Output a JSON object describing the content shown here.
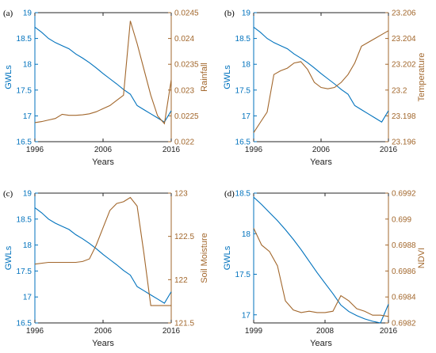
{
  "colors": {
    "left_series": "#0072BD",
    "right_series": "#A2672C",
    "axis": "#262626"
  },
  "chart_data": [
    {
      "type": "line",
      "panel_label": "(a)",
      "xlabel": "Years",
      "ylabel_left": "GWLs",
      "ylabel_right": "Rainfall",
      "xlim": [
        1996,
        2016
      ],
      "xticks": [
        1996,
        2006,
        2016
      ],
      "xtick_labels": [
        "1996",
        "2006",
        "2016"
      ],
      "ylim_left": [
        16.5,
        19
      ],
      "yticks_left": [
        16.5,
        17,
        17.5,
        18,
        18.5,
        19
      ],
      "ytick_labels_left": [
        "16.5",
        "17",
        "17.5",
        "18",
        "18.5",
        "19"
      ],
      "ylim_right": [
        0.022,
        0.0245
      ],
      "yticks_right": [
        0.022,
        0.0225,
        0.023,
        0.0235,
        0.024,
        0.0245
      ],
      "ytick_labels_right": [
        "0.022",
        "0.0225",
        "0.023",
        "0.0235",
        "0.024",
        "0.0245"
      ],
      "grid": false,
      "series": [
        {
          "axis": "left",
          "x": [
            1996,
            1997,
            1998,
            1999,
            2000,
            2001,
            2002,
            2003,
            2004,
            2005,
            2006,
            2007,
            2008,
            2009,
            2010,
            2011,
            2012,
            2013,
            2014,
            2015,
            2016
          ],
          "values": [
            18.72,
            18.62,
            18.5,
            18.42,
            18.36,
            18.3,
            18.2,
            18.12,
            18.03,
            17.93,
            17.82,
            17.72,
            17.62,
            17.51,
            17.42,
            17.2,
            17.12,
            17.04,
            16.96,
            16.88,
            17.1
          ]
        },
        {
          "axis": "right",
          "x": [
            1996,
            1997,
            1998,
            1999,
            2000,
            2001,
            2002,
            2003,
            2004,
            2005,
            2006,
            2007,
            2008,
            2009,
            2010,
            2011,
            2012,
            2013,
            2014,
            2015,
            2016
          ],
          "values": [
            0.02237,
            0.02239,
            0.02242,
            0.02245,
            0.02253,
            0.02251,
            0.02251,
            0.02252,
            0.02254,
            0.02258,
            0.02264,
            0.0227,
            0.0228,
            0.0229,
            0.02434,
            0.0239,
            0.0234,
            0.0229,
            0.0225,
            0.02235,
            0.0232
          ]
        }
      ]
    },
    {
      "type": "line",
      "panel_label": "(b)",
      "xlabel": "Years",
      "ylabel_left": "GWLs",
      "ylabel_right": "Temperature",
      "xlim": [
        1996,
        2016
      ],
      "xticks": [
        1996,
        2006,
        2016
      ],
      "xtick_labels": [
        "1996",
        "2006",
        "2016"
      ],
      "ylim_left": [
        16.5,
        19
      ],
      "yticks_left": [
        16.5,
        17,
        17.5,
        18,
        18.5,
        19
      ],
      "ytick_labels_left": [
        "16.5",
        "17",
        "17.5",
        "18",
        "18.5",
        "19"
      ],
      "ylim_right": [
        23.196,
        23.206
      ],
      "yticks_right": [
        23.196,
        23.198,
        23.2,
        23.202,
        23.204,
        23.206
      ],
      "ytick_labels_right": [
        "23.196",
        "23.198",
        "23.2",
        "23.202",
        "23.204",
        "23.206"
      ],
      "grid": false,
      "series": [
        {
          "axis": "left",
          "x": [
            1996,
            1997,
            1998,
            1999,
            2000,
            2001,
            2002,
            2003,
            2004,
            2005,
            2006,
            2007,
            2008,
            2009,
            2010,
            2011,
            2012,
            2013,
            2014,
            2015,
            2016
          ],
          "values": [
            18.72,
            18.62,
            18.5,
            18.42,
            18.36,
            18.3,
            18.2,
            18.12,
            18.03,
            17.93,
            17.82,
            17.72,
            17.62,
            17.51,
            17.42,
            17.2,
            17.12,
            17.04,
            16.96,
            16.88,
            17.1
          ]
        },
        {
          "axis": "right",
          "x": [
            1996,
            1997,
            1998,
            1999,
            2000,
            2001,
            2002,
            2003,
            2004,
            2005,
            2006,
            2007,
            2008,
            2009,
            2010,
            2011,
            2012,
            2013,
            2014,
            2015,
            2016
          ],
          "values": [
            23.1967,
            23.1975,
            23.1983,
            23.2012,
            23.2015,
            23.2017,
            23.2021,
            23.2022,
            23.2016,
            23.2006,
            23.2002,
            23.2001,
            23.2002,
            23.2006,
            23.2012,
            23.2021,
            23.2034,
            23.2037,
            23.204,
            23.2043,
            23.2046
          ]
        }
      ]
    },
    {
      "type": "line",
      "panel_label": "(c)",
      "xlabel": "Years",
      "ylabel_left": "GWLs",
      "ylabel_right": "Soil Moisture",
      "xlim": [
        1996,
        2016
      ],
      "xticks": [
        1996,
        2006,
        2016
      ],
      "xtick_labels": [
        "1996",
        "2006",
        "2016"
      ],
      "ylim_left": [
        16.5,
        19
      ],
      "yticks_left": [
        16.5,
        17,
        17.5,
        18,
        18.5,
        19
      ],
      "ytick_labels_left": [
        "16.5",
        "17",
        "17.5",
        "18",
        "18.5",
        "19"
      ],
      "ylim_right": [
        121.5,
        123
      ],
      "yticks_right": [
        121.5,
        122,
        122.5,
        123
      ],
      "ytick_labels_right": [
        "121.5",
        "122",
        "122.5",
        "123"
      ],
      "grid": false,
      "series": [
        {
          "axis": "left",
          "x": [
            1996,
            1997,
            1998,
            1999,
            2000,
            2001,
            2002,
            2003,
            2004,
            2005,
            2006,
            2007,
            2008,
            2009,
            2010,
            2011,
            2012,
            2013,
            2014,
            2015,
            2016
          ],
          "values": [
            18.72,
            18.62,
            18.5,
            18.42,
            18.36,
            18.3,
            18.2,
            18.12,
            18.03,
            17.93,
            17.82,
            17.72,
            17.62,
            17.51,
            17.42,
            17.2,
            17.12,
            17.04,
            16.96,
            16.88,
            17.1
          ]
        },
        {
          "axis": "right",
          "x": [
            1996,
            1998,
            2000,
            2002,
            2003,
            2004,
            2005,
            2006,
            2007,
            2008,
            2009,
            2010,
            2011,
            2012,
            2013,
            2014,
            2015,
            2016
          ],
          "values": [
            122.18,
            122.2,
            122.2,
            122.2,
            122.21,
            122.24,
            122.4,
            122.6,
            122.8,
            122.88,
            122.9,
            122.95,
            122.85,
            122.3,
            121.7,
            121.7,
            121.7,
            121.7
          ]
        }
      ]
    },
    {
      "type": "line",
      "panel_label": "(d)",
      "xlabel": "Years",
      "ylabel_left": "GWLs",
      "ylabel_right": "NDVI",
      "xlim": [
        1999,
        2016
      ],
      "xticks": [
        1999,
        2008,
        2016
      ],
      "xtick_labels": [
        "1999",
        "2008",
        "2016"
      ],
      "ylim_left": [
        16.9,
        18.5
      ],
      "yticks_left": [
        17,
        17.5,
        18,
        18.5
      ],
      "ytick_labels_left": [
        "17",
        "17.5",
        "18",
        "18.5"
      ],
      "ylim_right": [
        0.6982,
        0.6992
      ],
      "yticks_right": [
        0.6982,
        0.6984,
        0.6986,
        0.6988,
        0.699,
        0.6992
      ],
      "ytick_labels_right": [
        "0.6982",
        "0.6984",
        "0.6986",
        "0.6988",
        "0.699",
        "0.6992"
      ],
      "grid": false,
      "series": [
        {
          "axis": "left",
          "x": [
            1999,
            2000,
            2001,
            2002,
            2003,
            2004,
            2005,
            2006,
            2007,
            2008,
            2009,
            2010,
            2011,
            2012,
            2013,
            2014,
            2015,
            2016
          ],
          "values": [
            18.45,
            18.36,
            18.26,
            18.16,
            18.05,
            17.93,
            17.8,
            17.66,
            17.52,
            17.39,
            17.26,
            17.12,
            17.04,
            16.99,
            16.95,
            16.92,
            16.9,
            17.13
          ]
        },
        {
          "axis": "right",
          "x": [
            1999,
            2000,
            2001,
            2002,
            2003,
            2004,
            2005,
            2006,
            2007,
            2008,
            2009,
            2010,
            2011,
            2012,
            2013,
            2014,
            2015,
            2016
          ],
          "values": [
            0.69893,
            0.6988,
            0.69875,
            0.69864,
            0.69837,
            0.6983,
            0.69828,
            0.69829,
            0.69828,
            0.69828,
            0.69829,
            0.69841,
            0.69837,
            0.69831,
            0.69829,
            0.69826,
            0.69826,
            0.69825
          ]
        }
      ]
    }
  ]
}
